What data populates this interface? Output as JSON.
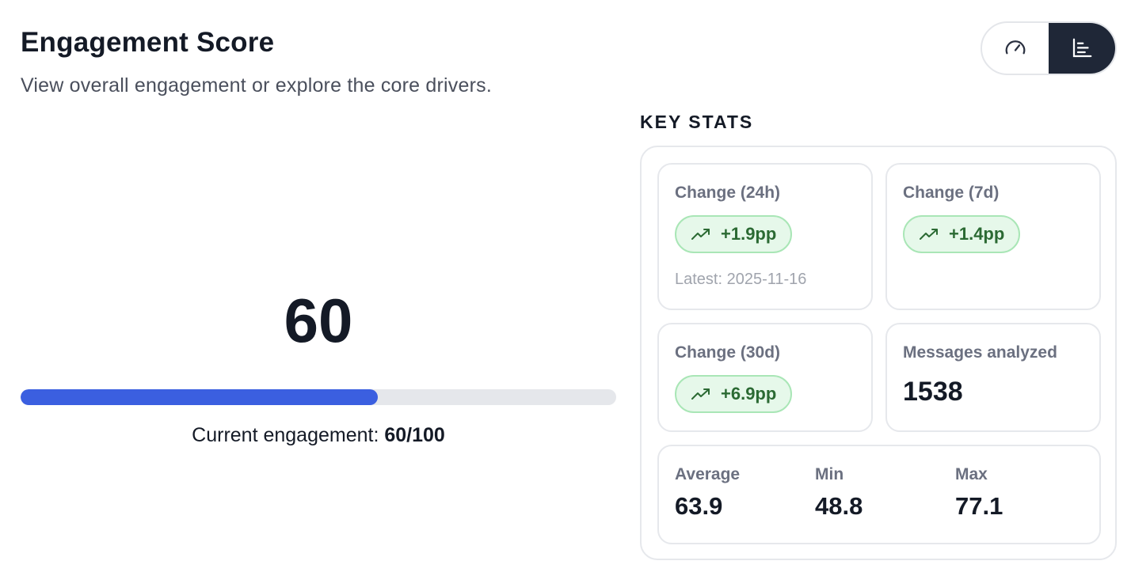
{
  "header": {
    "title": "Engagement Score",
    "subtitle": "View overall engagement or explore the core drivers."
  },
  "view_toggle": {
    "options": [
      {
        "icon": "gauge-icon",
        "active": false
      },
      {
        "icon": "bar-chart-icon",
        "active": true
      }
    ]
  },
  "score": {
    "value": "60",
    "progress_fraction": 0.6,
    "current_label": "Current engagement:",
    "current_value": "60/100"
  },
  "key_stats": {
    "label": "KEY STATS",
    "change_24h": {
      "label": "Change (24h)",
      "value": "+1.9pp",
      "latest": "Latest: 2025-11-16"
    },
    "change_7d": {
      "label": "Change (7d)",
      "value": "+1.4pp"
    },
    "change_30d": {
      "label": "Change (30d)",
      "value": "+6.9pp"
    },
    "messages": {
      "label": "Messages analyzed",
      "value": "1538"
    },
    "aggregate": {
      "average": {
        "label": "Average",
        "value": "63.9"
      },
      "min": {
        "label": "Min",
        "value": "48.8"
      },
      "max": {
        "label": "Max",
        "value": "77.1"
      }
    }
  },
  "colors": {
    "accent": "#3b5fe0",
    "positive_bg": "#e6f8ea",
    "positive_text": "#2b6a33",
    "toggle_active": "#1f2737"
  }
}
